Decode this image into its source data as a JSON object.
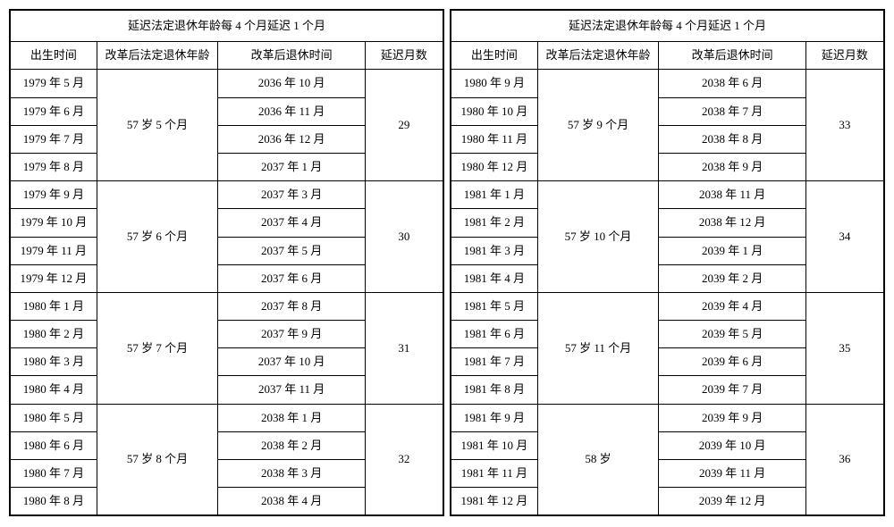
{
  "title": "延迟法定退休年龄每 4 个月延迟 1 个月",
  "headers": {
    "birth": "出生时间",
    "age": "改革后法定退休年龄",
    "retire": "改革后退休时间",
    "delay": "延迟月数"
  },
  "left": [
    {
      "age": "57 岁 5 个月",
      "delay": "29",
      "rows": [
        {
          "birth": "1979 年 5 月",
          "retire": "2036 年 10 月"
        },
        {
          "birth": "1979 年 6 月",
          "retire": "2036 年 11 月"
        },
        {
          "birth": "1979 年 7 月",
          "retire": "2036 年 12 月"
        },
        {
          "birth": "1979 年 8 月",
          "retire": "2037 年 1 月"
        }
      ]
    },
    {
      "age": "57 岁 6 个月",
      "delay": "30",
      "rows": [
        {
          "birth": "1979 年 9 月",
          "retire": "2037 年 3 月"
        },
        {
          "birth": "1979 年 10 月",
          "retire": "2037 年 4 月"
        },
        {
          "birth": "1979 年 11 月",
          "retire": "2037 年 5 月"
        },
        {
          "birth": "1979 年 12 月",
          "retire": "2037 年 6 月"
        }
      ]
    },
    {
      "age": "57 岁 7 个月",
      "delay": "31",
      "rows": [
        {
          "birth": "1980 年 1 月",
          "retire": "2037 年 8 月"
        },
        {
          "birth": "1980 年 2 月",
          "retire": "2037 年 9 月"
        },
        {
          "birth": "1980 年 3 月",
          "retire": "2037 年 10 月"
        },
        {
          "birth": "1980 年 4 月",
          "retire": "2037 年 11 月"
        }
      ]
    },
    {
      "age": "57 岁 8 个月",
      "delay": "32",
      "rows": [
        {
          "birth": "1980 年 5 月",
          "retire": "2038 年 1 月"
        },
        {
          "birth": "1980 年 6 月",
          "retire": "2038 年 2 月"
        },
        {
          "birth": "1980 年 7 月",
          "retire": "2038 年 3 月"
        },
        {
          "birth": "1980 年 8 月",
          "retire": "2038 年 4 月"
        }
      ]
    }
  ],
  "right": [
    {
      "age": "57 岁 9 个月",
      "delay": "33",
      "rows": [
        {
          "birth": "1980 年 9 月",
          "retire": "2038 年 6 月"
        },
        {
          "birth": "1980 年 10 月",
          "retire": "2038 年 7 月"
        },
        {
          "birth": "1980 年 11 月",
          "retire": "2038 年 8 月"
        },
        {
          "birth": "1980 年 12 月",
          "retire": "2038 年 9 月"
        }
      ]
    },
    {
      "age": "57 岁 10 个月",
      "delay": "34",
      "rows": [
        {
          "birth": "1981 年 1 月",
          "retire": "2038 年 11 月"
        },
        {
          "birth": "1981 年 2 月",
          "retire": "2038 年 12 月"
        },
        {
          "birth": "1981 年 3 月",
          "retire": "2039 年 1 月"
        },
        {
          "birth": "1981 年 4 月",
          "retire": "2039 年 2 月"
        }
      ]
    },
    {
      "age": "57 岁 11 个月",
      "delay": "35",
      "rows": [
        {
          "birth": "1981 年 5 月",
          "retire": "2039 年 4 月"
        },
        {
          "birth": "1981 年 6 月",
          "retire": "2039 年 5 月"
        },
        {
          "birth": "1981 年 7 月",
          "retire": "2039 年 6 月"
        },
        {
          "birth": "1981 年 8 月",
          "retire": "2039 年 7 月"
        }
      ]
    },
    {
      "age": "58 岁",
      "delay": "36",
      "rows": [
        {
          "birth": "1981 年 9 月",
          "retire": "2039 年 9 月"
        },
        {
          "birth": "1981 年 10 月",
          "retire": "2039 年 10 月"
        },
        {
          "birth": "1981 年 11 月",
          "retire": "2039 年 11 月"
        },
        {
          "birth": "1981 年 12 月",
          "retire": "2039 年 12 月"
        }
      ]
    }
  ]
}
